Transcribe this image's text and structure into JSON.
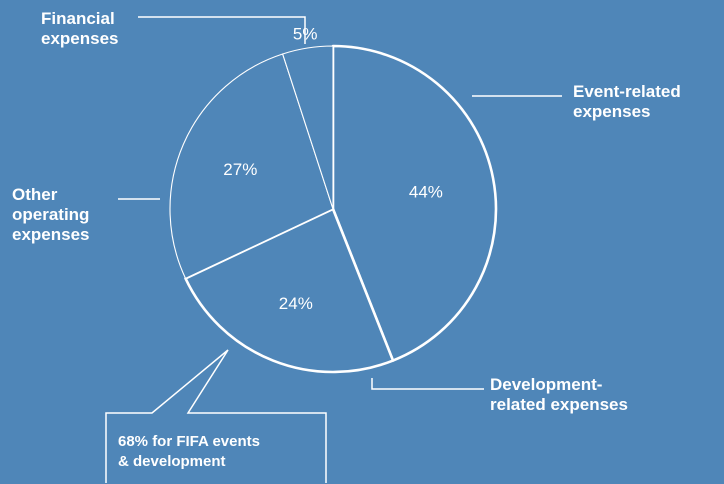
{
  "chart_data": {
    "type": "pie",
    "categories": [
      "Event-related expenses",
      "Development-related expenses",
      "Other operating expenses",
      "Financial expenses"
    ],
    "values": [
      44,
      24,
      27,
      5
    ],
    "value_labels": [
      "44%",
      "24%",
      "27%",
      "5%"
    ],
    "category_labels": [
      "Event-related\nexpenses",
      "Development-\nrelated expenses",
      "Other\noperating\nexpenses",
      "Financial\nexpenses"
    ],
    "annotation": "68% for FIFA events\n& development",
    "legend": "none",
    "start_angle": "12 o'clock",
    "direction": "clockwise"
  },
  "colors": {
    "background": "#4f86b8",
    "stroke": "#ffffff"
  }
}
